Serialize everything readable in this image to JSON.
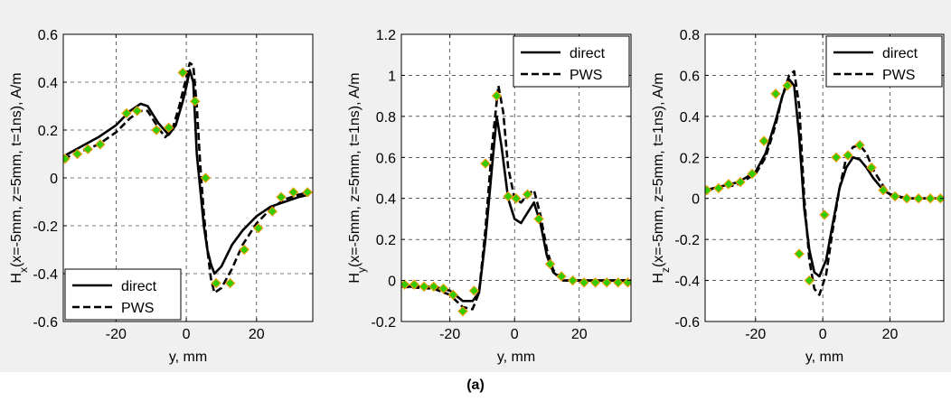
{
  "figure": {
    "caption": "(a)",
    "background": "#f0f0f0"
  },
  "style": {
    "marker_fill": "#33cc00",
    "marker_edge": "#ff9900",
    "line_color": "#000000"
  },
  "chart_data": [
    {
      "type": "line",
      "ylabel_prefix": "H",
      "ylabel_sub": "x",
      "ylabel_suffix": "(x=-5mm, z=5mm, t=1ns), A/m",
      "xlabel": "y, mm",
      "xlim": [
        -35,
        36
      ],
      "ylim": [
        -0.6,
        0.6
      ],
      "xticks": [
        -20,
        0,
        20
      ],
      "xtick_labels": [
        "-20",
        "0",
        "20"
      ],
      "yticks": [
        -0.6,
        -0.4,
        -0.2,
        0,
        0.2,
        0.4,
        0.6
      ],
      "ytick_labels": [
        "-0.6",
        "-0.4",
        "-0.2",
        "0",
        "0.2",
        "0.4",
        "0.6"
      ],
      "grid": true,
      "legend": {
        "position": "bottom-left",
        "entries": [
          "direct",
          "PWS"
        ]
      },
      "series": [
        {
          "name": "direct",
          "style": "solid",
          "x": [
            -35,
            -30,
            -25,
            -20,
            -16,
            -13,
            -11,
            -8,
            -5,
            -3,
            -1,
            0,
            1,
            2,
            3,
            4,
            5,
            6,
            7,
            8,
            10,
            13,
            16,
            20,
            24,
            28,
            32,
            35
          ],
          "y": [
            0.09,
            0.13,
            0.17,
            0.22,
            0.28,
            0.31,
            0.3,
            0.23,
            0.18,
            0.22,
            0.32,
            0.38,
            0.45,
            0.4,
            0.1,
            -0.05,
            -0.2,
            -0.3,
            -0.36,
            -0.4,
            -0.37,
            -0.28,
            -0.22,
            -0.16,
            -0.12,
            -0.1,
            -0.08,
            -0.07
          ]
        },
        {
          "name": "PWS",
          "style": "dashed",
          "x": [
            -35,
            -30,
            -25,
            -20,
            -16,
            -13,
            -11,
            -8,
            -6,
            -4,
            -2,
            0,
            1,
            2,
            3,
            4,
            5,
            6,
            7,
            8,
            10,
            13,
            16,
            20,
            24,
            28,
            32,
            35
          ],
          "y": [
            0.08,
            0.11,
            0.14,
            0.19,
            0.25,
            0.28,
            0.28,
            0.21,
            0.17,
            0.2,
            0.3,
            0.42,
            0.48,
            0.47,
            0.3,
            0.05,
            -0.15,
            -0.3,
            -0.42,
            -0.48,
            -0.46,
            -0.38,
            -0.28,
            -0.19,
            -0.13,
            -0.09,
            -0.07,
            -0.06
          ]
        }
      ],
      "markers": {
        "x": [
          -34.5,
          -31,
          -28,
          -24.5,
          -17,
          -14,
          -8.5,
          -5,
          -1,
          2.5,
          5.5,
          8.5,
          12.5,
          16.5,
          20.5,
          24.5,
          27,
          30.5,
          34.5
        ],
        "y": [
          0.08,
          0.1,
          0.12,
          0.14,
          0.27,
          0.28,
          0.2,
          0.21,
          0.44,
          0.32,
          0.0,
          -0.44,
          -0.44,
          -0.3,
          -0.21,
          -0.14,
          -0.08,
          -0.06,
          -0.06
        ]
      }
    },
    {
      "type": "line",
      "ylabel_prefix": "H",
      "ylabel_sub": "y",
      "ylabel_suffix": "(x=-5mm, z=5mm, t=1ns), A/m",
      "xlabel": "y, mm",
      "xlim": [
        -35,
        36
      ],
      "ylim": [
        -0.2,
        1.2
      ],
      "xticks": [
        -20,
        0,
        20
      ],
      "xtick_labels": [
        "-20",
        "0",
        "20"
      ],
      "yticks": [
        -0.2,
        0,
        0.2,
        0.4,
        0.6,
        0.8,
        1,
        1.2
      ],
      "ytick_labels": [
        "-0.2",
        "0",
        "0.2",
        "0.4",
        "0.6",
        "0.8",
        "1",
        "1.2"
      ],
      "grid": true,
      "legend": {
        "position": "top-right",
        "entries": [
          "direct",
          "PWS"
        ]
      },
      "series": [
        {
          "name": "direct",
          "style": "solid",
          "x": [
            -35,
            -25,
            -20,
            -16,
            -13,
            -11,
            -9,
            -7,
            -5.5,
            -4,
            -2,
            0,
            2,
            4,
            6,
            8,
            10,
            12,
            15,
            20,
            30,
            36
          ],
          "y": [
            -0.03,
            -0.03,
            -0.05,
            -0.1,
            -0.1,
            -0.06,
            0.2,
            0.55,
            0.8,
            0.65,
            0.4,
            0.3,
            0.28,
            0.33,
            0.38,
            0.28,
            0.12,
            0.04,
            0.0,
            0.0,
            0.0,
            0.0
          ]
        },
        {
          "name": "PWS",
          "style": "dashed",
          "x": [
            -35,
            -25,
            -20,
            -16,
            -13,
            -11,
            -9,
            -7,
            -5,
            -3.5,
            -2,
            0,
            2,
            4,
            6,
            8,
            10,
            12,
            15,
            20,
            30,
            36
          ],
          "y": [
            -0.03,
            -0.04,
            -0.07,
            -0.13,
            -0.14,
            -0.06,
            0.25,
            0.65,
            0.95,
            0.82,
            0.55,
            0.4,
            0.38,
            0.42,
            0.44,
            0.32,
            0.15,
            0.05,
            0.0,
            0.0,
            0.0,
            0.0
          ]
        }
      ],
      "markers": {
        "x": [
          -34,
          -31,
          -28,
          -25,
          -22,
          -19,
          -16,
          -12.5,
          -9,
          -5.5,
          -2,
          0.5,
          4,
          7.5,
          11,
          14.5,
          18,
          21.5,
          25,
          28.5,
          32,
          35
        ],
        "y": [
          -0.02,
          -0.02,
          -0.03,
          -0.03,
          -0.04,
          -0.07,
          -0.15,
          -0.05,
          0.57,
          0.9,
          0.41,
          0.4,
          0.42,
          0.3,
          0.08,
          0.02,
          0.0,
          -0.01,
          -0.01,
          -0.01,
          -0.01,
          -0.01
        ]
      }
    },
    {
      "type": "line",
      "ylabel_prefix": "H",
      "ylabel_sub": "z",
      "ylabel_suffix": "(x=-5mm, z=5mm, t=1ns), A/m",
      "xlabel": "y, mm",
      "xlim": [
        -35,
        36
      ],
      "ylim": [
        -0.6,
        0.8
      ],
      "xticks": [
        -20,
        0,
        20
      ],
      "xtick_labels": [
        "-20",
        "0",
        "20"
      ],
      "yticks": [
        -0.6,
        -0.4,
        -0.2,
        0,
        0.2,
        0.4,
        0.6,
        0.8
      ],
      "ytick_labels": [
        "-0.6",
        "-0.4",
        "-0.2",
        "0",
        "0.2",
        "0.4",
        "0.6",
        "0.8"
      ],
      "grid": true,
      "legend": {
        "position": "top-right",
        "entries": [
          "direct",
          "PWS"
        ]
      },
      "series": [
        {
          "name": "direct",
          "style": "solid",
          "x": [
            -35,
            -30,
            -25,
            -20,
            -17,
            -14,
            -12,
            -10,
            -8.5,
            -7,
            -5.5,
            -4,
            -2.5,
            -1,
            1,
            3,
            5,
            7,
            9,
            11,
            13,
            15,
            18,
            20,
            25,
            30,
            36
          ],
          "y": [
            0.04,
            0.06,
            0.08,
            0.13,
            0.22,
            0.38,
            0.5,
            0.58,
            0.55,
            0.3,
            -0.05,
            -0.25,
            -0.36,
            -0.38,
            -0.3,
            -0.12,
            0.05,
            0.15,
            0.2,
            0.19,
            0.15,
            0.1,
            0.04,
            0.02,
            0.0,
            0.0,
            0.0
          ]
        },
        {
          "name": "PWS",
          "style": "dashed",
          "x": [
            -35,
            -30,
            -25,
            -20,
            -17,
            -14,
            -12,
            -10,
            -8.5,
            -7,
            -5.5,
            -4,
            -2.5,
            -1,
            1,
            3,
            5,
            7,
            9,
            11,
            13,
            15,
            18,
            20,
            25,
            30,
            36
          ],
          "y": [
            0.04,
            0.05,
            0.07,
            0.12,
            0.2,
            0.36,
            0.5,
            0.6,
            0.62,
            0.45,
            0.0,
            -0.3,
            -0.44,
            -0.47,
            -0.37,
            -0.15,
            0.05,
            0.2,
            0.25,
            0.26,
            0.22,
            0.14,
            0.06,
            0.02,
            0.0,
            0.0,
            0.0
          ]
        }
      ],
      "markers": {
        "x": [
          -34.5,
          -31,
          -28,
          -24.5,
          -21,
          -17.5,
          -14,
          -10.5,
          -7,
          -4,
          0.5,
          4,
          7.5,
          11,
          14.5,
          18,
          21.5,
          25,
          28.5,
          32,
          35
        ],
        "y": [
          0.04,
          0.05,
          0.07,
          0.08,
          0.12,
          0.28,
          0.51,
          0.55,
          -0.27,
          -0.4,
          -0.08,
          0.2,
          0.21,
          0.26,
          0.15,
          0.04,
          0.01,
          0.0,
          0.0,
          0.0,
          0.0
        ]
      }
    }
  ]
}
